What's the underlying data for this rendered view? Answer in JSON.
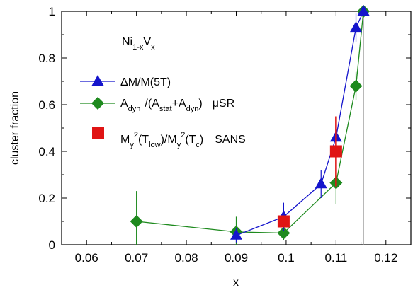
{
  "chart_data": {
    "type": "scatter",
    "xlabel": "x",
    "ylabel": "cluster fraction",
    "xlim": [
      0.055,
      0.125
    ],
    "ylim": [
      0,
      1
    ],
    "xticks": [
      0.06,
      0.07,
      0.08,
      0.09,
      0.1,
      0.11,
      0.12
    ],
    "xtick_labels": [
      "0.06",
      "0.07",
      "0.08",
      "0.09",
      "0.1",
      "0.11",
      "0.12"
    ],
    "yticks": [
      0,
      0.2,
      0.4,
      0.6,
      0.8,
      1
    ],
    "ytick_labels": [
      "0",
      "0.2",
      "0.4",
      "0.6",
      "0.8",
      "1"
    ],
    "grid": false,
    "legend_position": "left",
    "annotation": {
      "base": "Ni",
      "sub1": "1-x",
      "mid": "V",
      "sub2": "x"
    },
    "reference_line": {
      "x": 0.1155,
      "color": "#999999"
    },
    "series": [
      {
        "name": "ΔM/M(5T)",
        "legend_text": "ΔM/M(5T)",
        "color": "#1414cc",
        "marker": "triangle",
        "connected": true,
        "points": [
          {
            "x": 0.09,
            "y": 0.04,
            "err": 0.03
          },
          {
            "x": 0.0995,
            "y": 0.12,
            "err": 0.06
          },
          {
            "x": 0.107,
            "y": 0.26,
            "err": 0.06
          },
          {
            "x": 0.11,
            "y": 0.46,
            "err": 0.09
          },
          {
            "x": 0.114,
            "y": 0.93,
            "err": 0.06
          },
          {
            "x": 0.1155,
            "y": 1.0,
            "err": 0
          }
        ]
      },
      {
        "name": "A_dyn/(A_stat+A_dyn) μSR",
        "legend_parts": [
          "A",
          "dyn",
          "/(A",
          "stat",
          "+A",
          "dyn",
          ")",
          "μSR"
        ],
        "color": "#1e8a1e",
        "marker": "diamond",
        "connected": true,
        "points": [
          {
            "x": 0.07,
            "y": 0.1,
            "err": 0.13
          },
          {
            "x": 0.09,
            "y": 0.055,
            "err": 0.065
          },
          {
            "x": 0.0995,
            "y": 0.05,
            "err": 0.03
          },
          {
            "x": 0.11,
            "y": 0.265,
            "err": 0.09
          },
          {
            "x": 0.114,
            "y": 0.68,
            "err": 0.06
          },
          {
            "x": 0.1155,
            "y": 1.0,
            "err": 0
          }
        ]
      },
      {
        "name": "M_y^2(T_low)/M_y^2(T_c) SANS",
        "legend_parts": [
          "M",
          "y",
          "2",
          "(T",
          "low",
          ")/M",
          "y",
          "2",
          "(T",
          "c",
          ")",
          "SANS"
        ],
        "color": "#e01414",
        "marker": "square",
        "connected": false,
        "points": [
          {
            "x": 0.0995,
            "y": 0.1,
            "err": 0.02
          },
          {
            "x": 0.11,
            "y": 0.4,
            "err": 0.15
          }
        ]
      }
    ]
  }
}
